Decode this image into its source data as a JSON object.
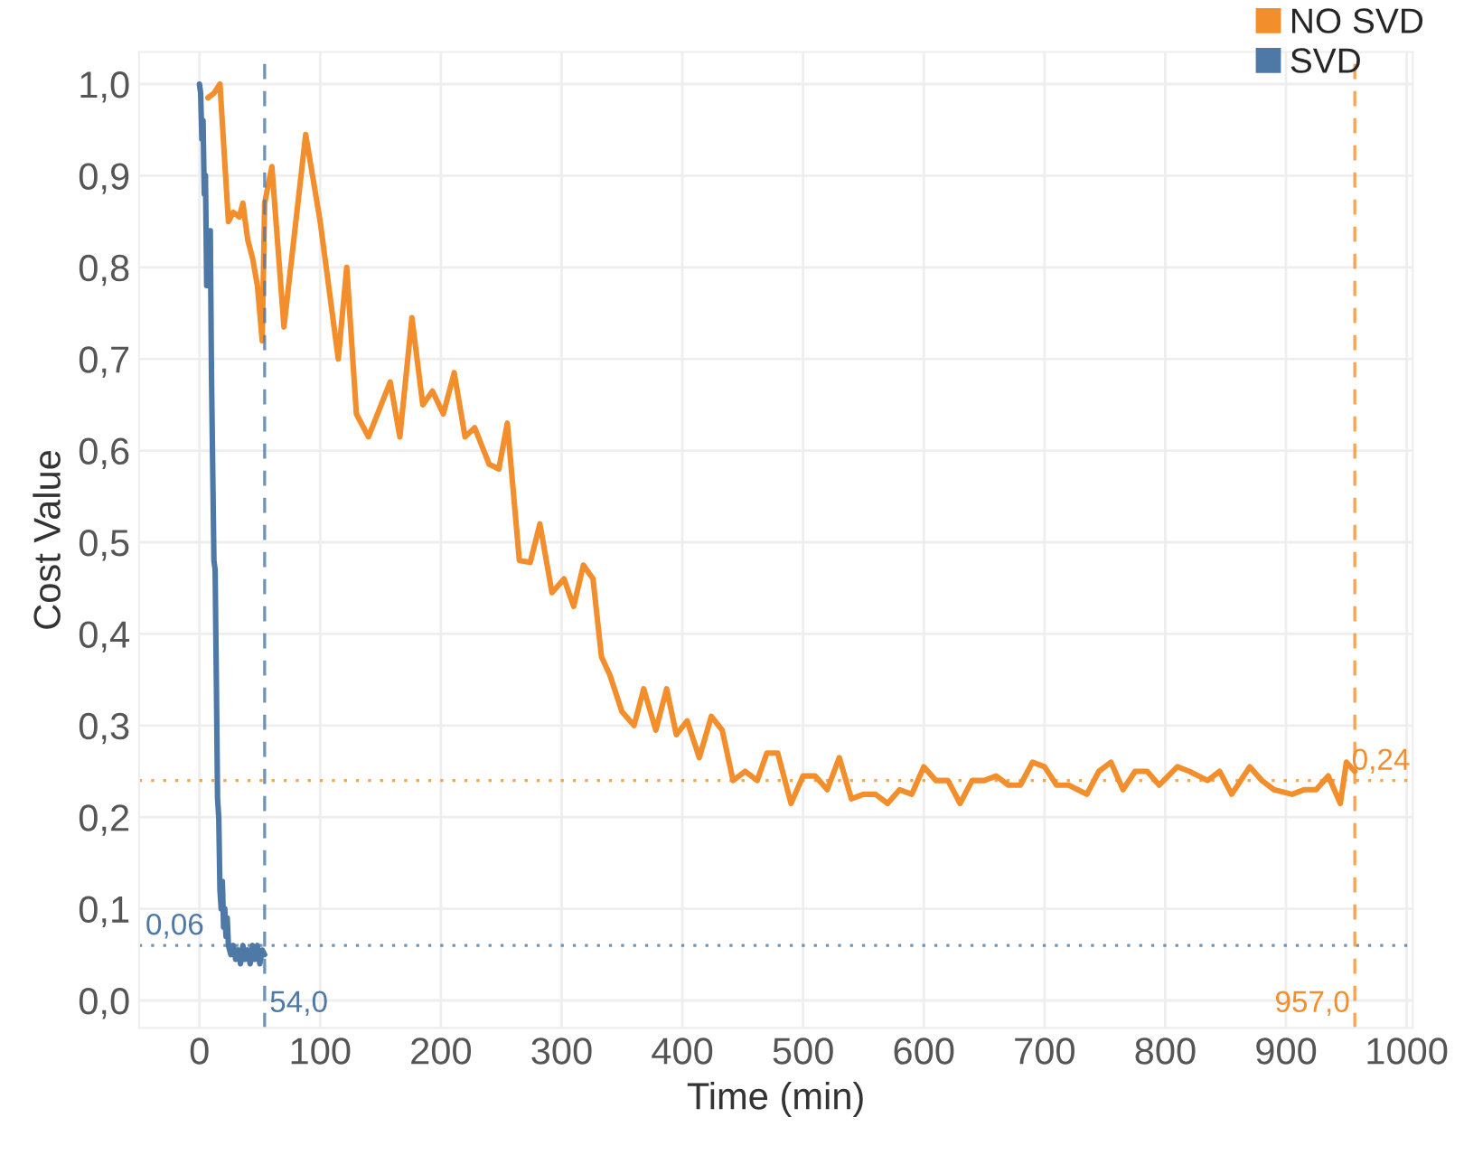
{
  "chart_data": {
    "type": "line",
    "xlabel": "Time (min)",
    "ylabel": "Cost Value",
    "xlim": [
      -50,
      1005
    ],
    "ylim": [
      -0.03,
      1.035
    ],
    "xticks": [
      0,
      100,
      200,
      300,
      400,
      500,
      600,
      700,
      800,
      900,
      1000
    ],
    "yticks": [
      {
        "value": 0,
        "label": "0,0"
      },
      {
        "value": 0.1,
        "label": "0,1"
      },
      {
        "value": 0.2,
        "label": "0,2"
      },
      {
        "value": 0.3,
        "label": "0,3"
      },
      {
        "value": 0.4,
        "label": "0,4"
      },
      {
        "value": 0.5,
        "label": "0,5"
      },
      {
        "value": 0.6,
        "label": "0,6"
      },
      {
        "value": 0.7,
        "label": "0,7"
      },
      {
        "value": 0.8,
        "label": "0,8"
      },
      {
        "value": 0.9,
        "label": "0,9"
      },
      {
        "value": 1.0,
        "label": "1,0"
      }
    ],
    "grid": true,
    "legend": "top right",
    "marker": "none",
    "line_style": "solid",
    "series": [
      {
        "name": "NO SVD",
        "color": "#f28e2b",
        "x": [
          7,
          12,
          17,
          24,
          28,
          33,
          36,
          40,
          44,
          48,
          52,
          54,
          60,
          70,
          88,
          100,
          115,
          122,
          130,
          140,
          158,
          166,
          176,
          185,
          193,
          202,
          211,
          220,
          228,
          240,
          248,
          255,
          265,
          274,
          282,
          292,
          302,
          310,
          318,
          326,
          333,
          340,
          350,
          360,
          368,
          378,
          387,
          395,
          404,
          414,
          424,
          433,
          442,
          452,
          462,
          470,
          479,
          490,
          500,
          510,
          520,
          530,
          540,
          550,
          560,
          570,
          580,
          590,
          600,
          610,
          620,
          630,
          640,
          650,
          660,
          670,
          680,
          690,
          700,
          710,
          720,
          735,
          745,
          755,
          765,
          775,
          785,
          795,
          810,
          820,
          835,
          845,
          855,
          870,
          880,
          890,
          905,
          915,
          925,
          935,
          945,
          950,
          957
        ],
        "values": [
          0.985,
          0.99,
          1.0,
          0.85,
          0.86,
          0.855,
          0.87,
          0.83,
          0.81,
          0.78,
          0.72,
          0.87,
          0.91,
          0.735,
          0.945,
          0.85,
          0.7,
          0.8,
          0.64,
          0.615,
          0.675,
          0.615,
          0.745,
          0.65,
          0.665,
          0.64,
          0.685,
          0.615,
          0.625,
          0.585,
          0.58,
          0.63,
          0.48,
          0.478,
          0.52,
          0.445,
          0.46,
          0.43,
          0.475,
          0.46,
          0.375,
          0.355,
          0.315,
          0.3,
          0.34,
          0.295,
          0.34,
          0.29,
          0.305,
          0.265,
          0.31,
          0.295,
          0.24,
          0.25,
          0.24,
          0.27,
          0.27,
          0.215,
          0.245,
          0.245,
          0.23,
          0.265,
          0.22,
          0.225,
          0.225,
          0.215,
          0.23,
          0.225,
          0.255,
          0.24,
          0.24,
          0.215,
          0.24,
          0.24,
          0.245,
          0.235,
          0.235,
          0.26,
          0.255,
          0.235,
          0.235,
          0.225,
          0.25,
          0.26,
          0.23,
          0.25,
          0.25,
          0.235,
          0.255,
          0.25,
          0.24,
          0.25,
          0.225,
          0.255,
          0.24,
          0.23,
          0.225,
          0.23,
          0.23,
          0.245,
          0.215,
          0.26,
          0.25
        ]
      },
      {
        "name": "SVD",
        "color": "#4e79a7",
        "x": [
          0,
          1,
          2,
          3,
          4,
          5,
          6,
          7,
          8,
          9,
          10,
          11,
          12,
          13,
          14,
          15,
          16,
          17,
          18,
          19,
          20,
          21,
          22,
          23,
          24,
          26,
          28,
          30,
          32,
          34,
          36,
          38,
          40,
          42,
          44,
          46,
          48,
          50,
          52,
          54
        ],
        "values": [
          1.0,
          0.99,
          0.94,
          0.96,
          0.88,
          0.9,
          0.78,
          0.84,
          0.8,
          0.84,
          0.68,
          0.58,
          0.48,
          0.47,
          0.35,
          0.22,
          0.2,
          0.12,
          0.1,
          0.13,
          0.08,
          0.1,
          0.07,
          0.09,
          0.06,
          0.05,
          0.06,
          0.045,
          0.055,
          0.04,
          0.06,
          0.045,
          0.055,
          0.04,
          0.06,
          0.045,
          0.06,
          0.04,
          0.055,
          0.05
        ]
      }
    ],
    "ref_lines": [
      {
        "axis": "x",
        "value": 54,
        "label": "54,0",
        "color": "#4e79a7",
        "line_style": "dashed"
      },
      {
        "axis": "y",
        "value": 0.06,
        "label": "0,06",
        "color": "#4e79a7",
        "line_style": "dotted"
      },
      {
        "axis": "x",
        "value": 957,
        "label": "957,0",
        "color": "#f28e2b",
        "line_style": "dashed"
      },
      {
        "axis": "y",
        "value": 0.24,
        "label": "0,24",
        "color": "#f28e2b",
        "line_style": "dotted"
      }
    ]
  }
}
